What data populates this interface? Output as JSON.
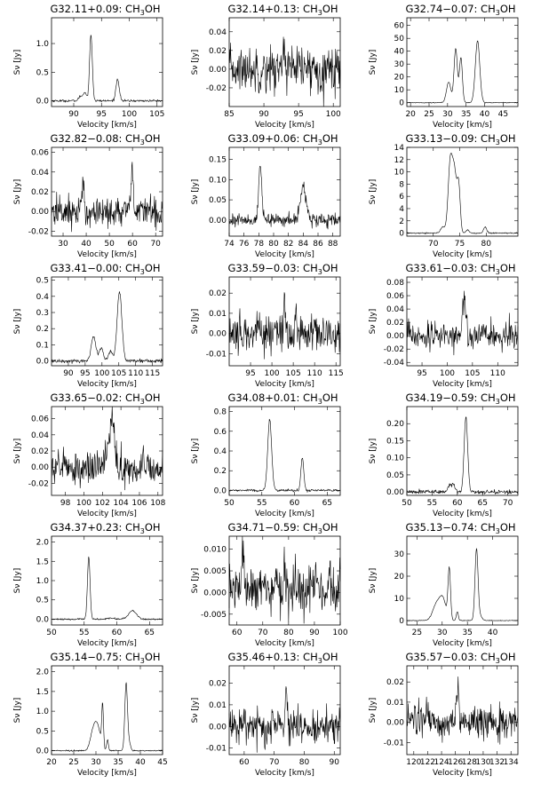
{
  "figure": {
    "xlabel": "Velocity [km/s]",
    "ylabel": "Sν [Jy]"
  },
  "chart_data": [
    {
      "type": "line",
      "title": "G32.11+0.09: CH3OH",
      "xlabel": "Velocity [km/s]",
      "ylabel": "Sν [Jy]",
      "xlim": [
        86,
        106
      ],
      "ylim": [
        -0.1,
        1.45
      ],
      "xticks": [
        90,
        95,
        100,
        105
      ],
      "yticks": [
        0.0,
        0.5,
        1.0
      ],
      "noise": 0.01,
      "baseline": 0,
      "lines": [
        {
          "v": 91.2,
          "a": 0.08,
          "w": 0.3
        },
        {
          "v": 92.0,
          "a": 0.15,
          "w": 0.3
        },
        {
          "v": 93.1,
          "a": 1.15,
          "w": 0.25
        },
        {
          "v": 97.9,
          "a": 0.38,
          "w": 0.3
        }
      ]
    },
    {
      "type": "line",
      "title": "G32.14+0.13: CH3OH",
      "xlabel": "Velocity [km/s]",
      "ylabel": "Sν [Jy]",
      "xlim": [
        85,
        101
      ],
      "ylim": [
        -0.04,
        0.055
      ],
      "xticks": [
        85,
        90,
        95,
        100
      ],
      "yticks": [
        -0.02,
        0.0,
        0.02,
        0.04
      ],
      "noise": 0.012,
      "baseline": 0,
      "lines": [
        {
          "v": 92.9,
          "a": 0.03,
          "w": 0.15
        }
      ]
    },
    {
      "type": "line",
      "title": "G32.74−0.07: CH3OH",
      "xlabel": "Velocity [km/s]",
      "ylabel": "Sν [Jy]",
      "xlim": [
        19,
        49
      ],
      "ylim": [
        -3,
        66
      ],
      "xticks": [
        20,
        25,
        30,
        35,
        40,
        45
      ],
      "yticks": [
        0,
        10,
        20,
        30,
        40,
        50,
        60
      ],
      "noise": 0.15,
      "baseline": 0,
      "lines": [
        {
          "v": 30.3,
          "a": 16,
          "w": 0.6
        },
        {
          "v": 32.2,
          "a": 42,
          "w": 0.45
        },
        {
          "v": 33.6,
          "a": 35,
          "w": 0.4
        },
        {
          "v": 38.1,
          "a": 48,
          "w": 0.6
        }
      ]
    },
    {
      "type": "line",
      "title": "G32.82−0.08: CH3OH",
      "xlabel": "Velocity [km/s]",
      "ylabel": "Sν [Jy]",
      "xlim": [
        25,
        73
      ],
      "ylim": [
        -0.025,
        0.065
      ],
      "xticks": [
        30,
        40,
        50,
        60,
        70
      ],
      "yticks": [
        -0.02,
        0.0,
        0.02,
        0.04,
        0.06
      ],
      "noise": 0.008,
      "baseline": 0,
      "lines": [
        {
          "v": 38.5,
          "a": 0.022,
          "w": 0.5
        },
        {
          "v": 59.8,
          "a": 0.05,
          "w": 0.4
        }
      ]
    },
    {
      "type": "line",
      "title": "G33.09+0.06: CH3OH",
      "xlabel": "Velocity [km/s]",
      "ylabel": "Sν [Jy]",
      "xlim": [
        74,
        89
      ],
      "ylim": [
        -0.04,
        0.18
      ],
      "xticks": [
        74,
        76,
        78,
        80,
        82,
        84,
        86,
        88
      ],
      "yticks": [
        0.0,
        0.05,
        0.1,
        0.15
      ],
      "noise": 0.008,
      "baseline": 0,
      "lines": [
        {
          "v": 78.2,
          "a": 0.14,
          "w": 0.2
        },
        {
          "v": 84.0,
          "a": 0.08,
          "w": 0.4
        }
      ]
    },
    {
      "type": "line",
      "title": "G33.13−0.09: CH3OH",
      "xlabel": "Velocity [km/s]",
      "ylabel": "Sν [Jy]",
      "xlim": [
        65,
        86
      ],
      "ylim": [
        -0.5,
        14
      ],
      "xticks": [
        70,
        75,
        80
      ],
      "yticks": [
        0,
        2,
        4,
        6,
        8,
        10,
        12,
        14
      ],
      "noise": 0.05,
      "baseline": 0,
      "lines": [
        {
          "v": 71.8,
          "a": 1.0,
          "w": 0.4
        },
        {
          "v": 73.2,
          "a": 11.3,
          "w": 0.4
        },
        {
          "v": 74.0,
          "a": 9.5,
          "w": 0.4
        },
        {
          "v": 74.8,
          "a": 7.5,
          "w": 0.3
        },
        {
          "v": 76.5,
          "a": 0.5,
          "w": 0.3
        },
        {
          "v": 79.8,
          "a": 1.0,
          "w": 0.3
        }
      ]
    },
    {
      "type": "line",
      "title": "G33.41−0.00: CH3OH",
      "xlabel": "Velocity [km/s]",
      "ylabel": "Sν [Jy]",
      "xlim": [
        85,
        118
      ],
      "ylim": [
        -0.03,
        0.52
      ],
      "xticks": [
        90,
        95,
        100,
        105,
        110,
        115
      ],
      "yticks": [
        0.0,
        0.1,
        0.2,
        0.3,
        0.4,
        0.5
      ],
      "noise": 0.006,
      "baseline": 0,
      "lines": [
        {
          "v": 97.5,
          "a": 0.15,
          "w": 0.7
        },
        {
          "v": 99.8,
          "a": 0.08,
          "w": 0.6
        },
        {
          "v": 102.5,
          "a": 0.06,
          "w": 0.6
        },
        {
          "v": 105.2,
          "a": 0.43,
          "w": 0.7
        }
      ]
    },
    {
      "type": "line",
      "title": "G33.59−0.03: CH3OH",
      "xlabel": "Velocity [km/s]",
      "ylabel": "Sν [Jy]",
      "xlim": [
        90,
        116
      ],
      "ylim": [
        -0.016,
        0.028
      ],
      "xticks": [
        95,
        100,
        105,
        110,
        115
      ],
      "yticks": [
        -0.01,
        0.0,
        0.01,
        0.02
      ],
      "noise": 0.005,
      "baseline": 0,
      "lines": [
        {
          "v": 102.9,
          "a": 0.012,
          "w": 0.2
        },
        {
          "v": 105.6,
          "a": 0.01,
          "w": 0.2
        }
      ]
    },
    {
      "type": "line",
      "title": "G33.61−0.03: CH3OH",
      "xlabel": "Velocity [km/s]",
      "ylabel": "Sν [Jy]",
      "xlim": [
        92,
        114
      ],
      "ylim": [
        -0.045,
        0.088
      ],
      "xticks": [
        95,
        100,
        105,
        110
      ],
      "yticks": [
        -0.04,
        -0.02,
        0.0,
        0.02,
        0.04,
        0.06,
        0.08
      ],
      "noise": 0.01,
      "baseline": 0,
      "lines": [
        {
          "v": 103.4,
          "a": 0.06,
          "w": 0.35
        }
      ]
    },
    {
      "type": "line",
      "title": "G33.65−0.02: CH3OH",
      "xlabel": "Velocity [km/s]",
      "ylabel": "Sν [Jy]",
      "xlim": [
        96.5,
        108.5
      ],
      "ylim": [
        -0.035,
        0.075
      ],
      "xticks": [
        98,
        100,
        102,
        104,
        106,
        108
      ],
      "yticks": [
        -0.02,
        0.0,
        0.02,
        0.04,
        0.06
      ],
      "noise": 0.01,
      "baseline": 0,
      "lines": [
        {
          "v": 103.1,
          "a": 0.05,
          "w": 0.25
        },
        {
          "v": 102.6,
          "a": 0.02,
          "w": 0.3
        }
      ]
    },
    {
      "type": "line",
      "title": "G34.08+0.01: CH3OH",
      "xlabel": "Velocity [km/s]",
      "ylabel": "Sν [Jy]",
      "xlim": [
        50,
        67
      ],
      "ylim": [
        -0.05,
        0.85
      ],
      "xticks": [
        50,
        55,
        60,
        65
      ],
      "yticks": [
        0.0,
        0.2,
        0.4,
        0.6,
        0.8
      ],
      "noise": 0.006,
      "baseline": 0,
      "lines": [
        {
          "v": 56.2,
          "a": 0.72,
          "w": 0.3
        },
        {
          "v": 61.2,
          "a": 0.33,
          "w": 0.22
        }
      ]
    },
    {
      "type": "line",
      "title": "G34.19−0.59: CH3OH",
      "xlabel": "Velocity [km/s]",
      "ylabel": "Sν [Jy]",
      "xlim": [
        50,
        72
      ],
      "ylim": [
        -0.01,
        0.25
      ],
      "xticks": [
        50,
        55,
        60,
        65,
        70
      ],
      "yticks": [
        0.0,
        0.05,
        0.1,
        0.15,
        0.2
      ],
      "noise": 0.003,
      "baseline": 0,
      "lines": [
        {
          "v": 58.5,
          "a": 0.02,
          "w": 0.4
        },
        {
          "v": 59.3,
          "a": 0.02,
          "w": 0.3
        },
        {
          "v": 61.7,
          "a": 0.22,
          "w": 0.35
        }
      ]
    },
    {
      "type": "line",
      "title": "G34.37+0.23: CH3OH",
      "xlabel": "Velocity [km/s]",
      "ylabel": "Sν [Jy]",
      "xlim": [
        50,
        67
      ],
      "ylim": [
        -0.15,
        2.15
      ],
      "xticks": [
        50,
        55,
        60,
        65
      ],
      "yticks": [
        0.0,
        0.5,
        1.0,
        1.5,
        2.0
      ],
      "noise": 0.01,
      "baseline": 0,
      "lines": [
        {
          "v": 55.7,
          "a": 1.62,
          "w": 0.2
        },
        {
          "v": 59.0,
          "a": 0.04,
          "w": 0.4
        },
        {
          "v": 62.4,
          "a": 0.22,
          "w": 0.6
        }
      ]
    },
    {
      "type": "line",
      "title": "G34.71−0.59: CH3OH",
      "xlabel": "Velocity [km/s]",
      "ylabel": "Sν [Jy]",
      "xlim": [
        57,
        100
      ],
      "ylim": [
        -0.0075,
        0.013
      ],
      "xticks": [
        60,
        70,
        80,
        90,
        100
      ],
      "yticks": [
        -0.005,
        0.0,
        0.005,
        0.01
      ],
      "noise": 0.003,
      "baseline": 0.001,
      "lines": [
        {
          "v": 62.3,
          "a": 0.008,
          "w": 0.3
        },
        {
          "v": 78.2,
          "a": 0.007,
          "w": 0.3
        }
      ]
    },
    {
      "type": "line",
      "title": "G35.13−0.74: CH3OH",
      "xlabel": "Velocity [km/s]",
      "ylabel": "Sν [Jy]",
      "xlim": [
        23,
        45
      ],
      "ylim": [
        -2,
        38
      ],
      "xticks": [
        25,
        30,
        35,
        40
      ],
      "yticks": [
        0,
        10,
        20,
        30
      ],
      "noise": 0.08,
      "baseline": 0,
      "lines": [
        {
          "v": 29.0,
          "a": 8,
          "w": 0.8
        },
        {
          "v": 30.2,
          "a": 8,
          "w": 0.6
        },
        {
          "v": 31.4,
          "a": 23,
          "w": 0.25
        },
        {
          "v": 33.0,
          "a": 4,
          "w": 0.2
        },
        {
          "v": 36.8,
          "a": 32,
          "w": 0.3
        },
        {
          "v": 37.5,
          "a": 2,
          "w": 0.4
        }
      ]
    },
    {
      "type": "line",
      "title": "G35.14−0.75: CH3OH",
      "xlabel": "Velocity [km/s]",
      "ylabel": "Sν [Jy]",
      "xlim": [
        20,
        45
      ],
      "ylim": [
        -0.1,
        2.15
      ],
      "xticks": [
        20,
        25,
        30,
        35,
        40,
        45
      ],
      "yticks": [
        0.0,
        0.5,
        1.0,
        1.5,
        2.0
      ],
      "noise": 0.008,
      "baseline": 0,
      "lines": [
        {
          "v": 29.5,
          "a": 0.55,
          "w": 0.7
        },
        {
          "v": 30.5,
          "a": 0.45,
          "w": 0.6
        },
        {
          "v": 31.5,
          "a": 1.1,
          "w": 0.2
        },
        {
          "v": 32.6,
          "a": 0.28,
          "w": 0.2
        },
        {
          "v": 36.8,
          "a": 1.7,
          "w": 0.3
        },
        {
          "v": 37.5,
          "a": 0.2,
          "w": 0.3
        }
      ]
    },
    {
      "type": "line",
      "title": "G35.46+0.13: CH3OH",
      "xlabel": "Velocity [km/s]",
      "ylabel": "Sν [Jy]",
      "xlim": [
        55,
        92
      ],
      "ylim": [
        -0.013,
        0.028
      ],
      "xticks": [
        60,
        70,
        80,
        90
      ],
      "yticks": [
        -0.01,
        0.0,
        0.01,
        0.02
      ],
      "noise": 0.004,
      "baseline": 0,
      "lines": [
        {
          "v": 74.0,
          "a": 0.016,
          "w": 0.35
        }
      ]
    },
    {
      "type": "line",
      "title": "G35.57−0.03: CH3OH",
      "xlabel": "Velocity [km/s]",
      "ylabel": "Sν [Jy]",
      "xlim": [
        119,
        135
      ],
      "ylim": [
        -0.016,
        0.028
      ],
      "xticks": [
        120,
        122,
        124,
        126,
        128,
        130,
        132,
        134
      ],
      "yticks": [
        -0.01,
        0.0,
        0.01,
        0.02
      ],
      "noise": 0.004,
      "baseline": 0,
      "lines": [
        {
          "v": 126.3,
          "a": 0.016,
          "w": 0.2
        },
        {
          "v": 121.9,
          "a": 0.006,
          "w": 0.2
        }
      ]
    }
  ]
}
